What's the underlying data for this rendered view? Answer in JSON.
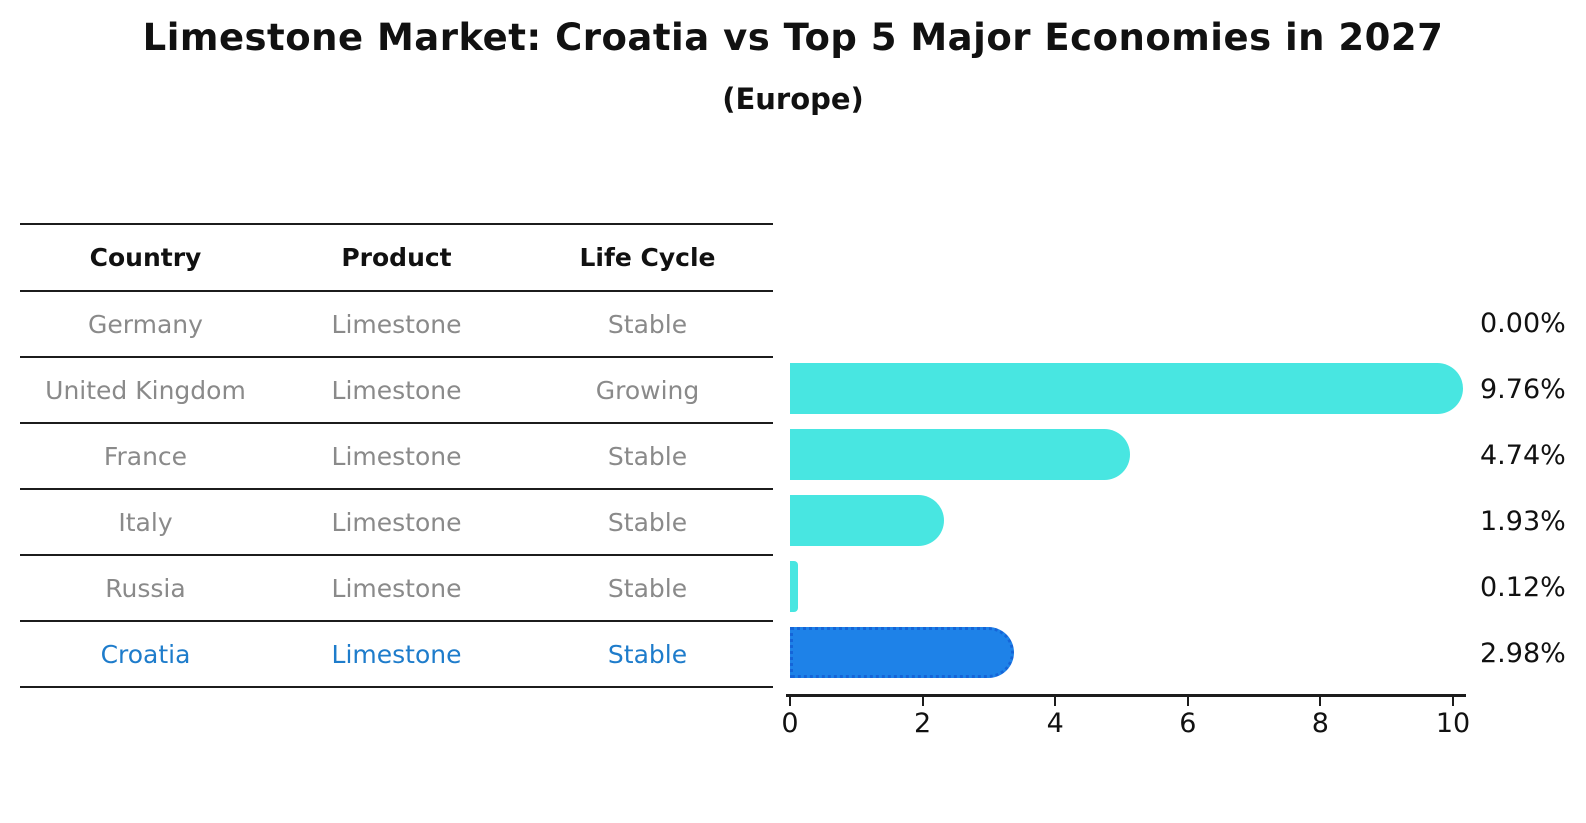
{
  "title": "Limestone Market: Croatia vs Top 5 Major Economies in 2027",
  "subtitle": "(Europe)",
  "table": {
    "headers": [
      "Country",
      "Product",
      "Life Cycle"
    ],
    "rows": [
      {
        "country": "Germany",
        "product": "Limestone",
        "life_cycle": "Stable"
      },
      {
        "country": "United Kingdom",
        "product": "Limestone",
        "life_cycle": "Growing"
      },
      {
        "country": "France",
        "product": "Limestone",
        "life_cycle": "Stable"
      },
      {
        "country": "Italy",
        "product": "Limestone",
        "life_cycle": "Stable"
      },
      {
        "country": "Russia",
        "product": "Limestone",
        "life_cycle": "Stable"
      },
      {
        "country": "Croatia",
        "product": "Limestone",
        "life_cycle": "Stable"
      }
    ]
  },
  "chart_data": {
    "type": "bar",
    "orientation": "horizontal",
    "title": "Limestone Market: Croatia vs Top 5 Major Economies in 2027 (Europe)",
    "categories": [
      "Germany",
      "United Kingdom",
      "France",
      "Italy",
      "Russia",
      "Croatia"
    ],
    "values": [
      0.0,
      9.76,
      4.74,
      1.93,
      0.12,
      2.98
    ],
    "labels": [
      "0.00%",
      "9.76%",
      "4.74%",
      "1.93%",
      "0.12%",
      "2.98%"
    ],
    "xlim": [
      0,
      10
    ],
    "xticks": [
      "0",
      "2",
      "4",
      "6",
      "8",
      "10"
    ],
    "grid": false,
    "legend": false,
    "highlight_index": 5,
    "bar_color": "#48E6E1",
    "highlight_bar_color": "#1E82E8",
    "highlight_border_color": "#1565D8",
    "highlight_text_color": "#1E7CCB",
    "text_color": "#111111",
    "muted_text_color": "#8a8a8a"
  }
}
